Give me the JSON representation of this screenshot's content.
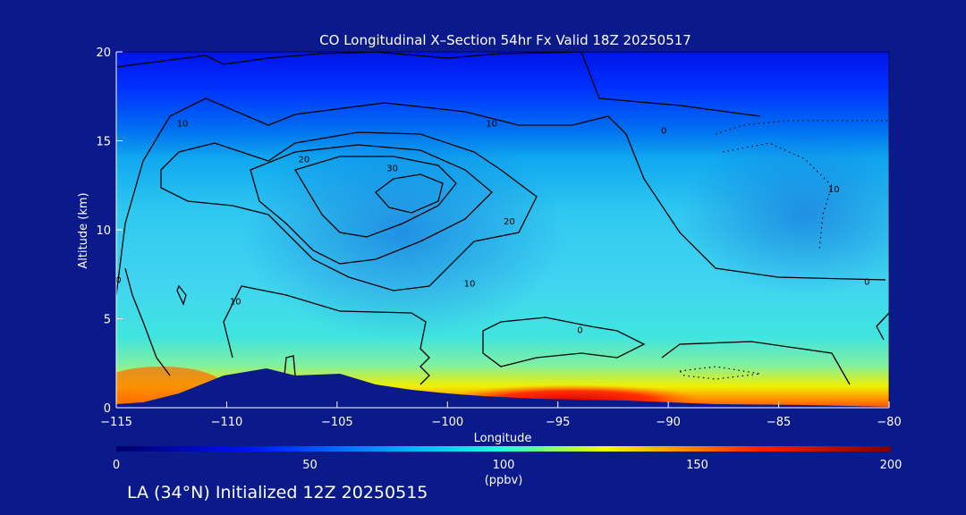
{
  "chart_data": {
    "type": "contour",
    "title": "CO Longitudinal X–Section 54hr  Fx Valid 18Z 20250517",
    "xlabel": "Longitude",
    "ylabel": "Altitude (km)",
    "xlim": [
      -115,
      -80
    ],
    "ylim": [
      0,
      20
    ],
    "x_ticks": [
      -115,
      -110,
      -105,
      -100,
      -95,
      -90,
      -85,
      -80
    ],
    "x_tick_labels": [
      "−115",
      "−110",
      "−105",
      "−100",
      "−95",
      "−90",
      "−85",
      "−80"
    ],
    "y_ticks": [
      0,
      5,
      10,
      15,
      20
    ],
    "y_tick_labels": [
      "0",
      "5",
      "10",
      "15",
      "20"
    ],
    "colorbar": {
      "range": [
        0,
        200
      ],
      "ticks": [
        0,
        50,
        100,
        150,
        200
      ],
      "tick_labels": [
        "0",
        "50",
        "100",
        "150",
        "200"
      ],
      "units": "(ppbv)",
      "colors": [
        "#000066",
        "#0010ff",
        "#00b4ff",
        "#20ffd8",
        "#f0ff00",
        "#ff2000",
        "#800000"
      ]
    },
    "fill_regions": [
      {
        "x": [
          -115,
          -80
        ],
        "y": [
          17,
          20
        ],
        "value": 25
      },
      {
        "x": [
          -115,
          -80
        ],
        "y": [
          14.5,
          17
        ],
        "value": 45
      },
      {
        "x": [
          -115,
          -80
        ],
        "y": [
          5,
          14.5
        ],
        "value": 75
      },
      {
        "x": [
          -115,
          -80
        ],
        "y": [
          1.5,
          5
        ],
        "value": 95
      },
      {
        "x": [
          -115,
          -80
        ],
        "y": [
          0,
          1.5
        ],
        "value": 150
      },
      {
        "x": [
          -98,
          -88
        ],
        "y": [
          0,
          0.8
        ],
        "value": 185
      }
    ],
    "contour_labels": [
      {
        "text": "10",
        "x": -112,
        "y": 16.0
      },
      {
        "text": "10",
        "x": -98,
        "y": 16.0
      },
      {
        "text": "20",
        "x": -106.5,
        "y": 14.0
      },
      {
        "text": "30",
        "x": -102.5,
        "y": 13.5
      },
      {
        "text": "20",
        "x": -97.2,
        "y": 10.5
      },
      {
        "text": "10",
        "x": -99,
        "y": 7.0
      },
      {
        "text": "10",
        "x": -109.6,
        "y": 6.0
      },
      {
        "text": "0",
        "x": -90.2,
        "y": 15.6
      },
      {
        "text": "10",
        "x": -82.5,
        "y": 12.3
      },
      {
        "text": "0",
        "x": -81,
        "y": 7.1
      },
      {
        "text": "0",
        "x": -94,
        "y": 4.4
      },
      {
        "text": "0",
        "x": -114.9,
        "y": 7.2
      }
    ]
  },
  "footer": "LA (34°N) Initialized 12Z 20250515"
}
